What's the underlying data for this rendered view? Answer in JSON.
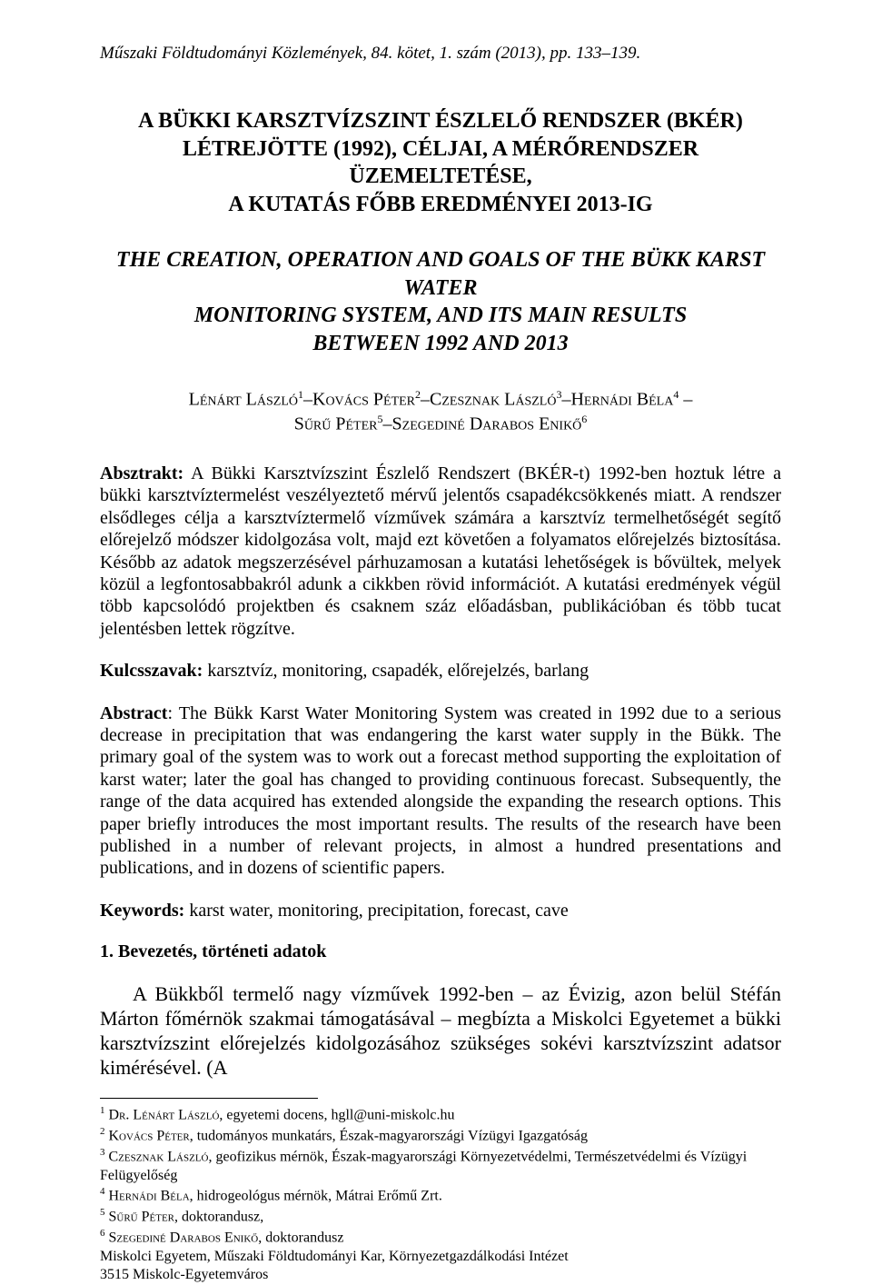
{
  "header": {
    "journal_line": "Műszaki Földtudományi Közlemények, 84. kötet, 1. szám (2013), pp. 133–139."
  },
  "titles": {
    "hu_line1": "A BÜKKI KARSZTVÍZSZINT ÉSZLELŐ RENDSZER (BKÉR)",
    "hu_line2": "LÉTREJÖTTE (1992), CÉLJAI, A MÉRŐRENDSZER ÜZEMELTETÉSE,",
    "hu_line3": "A KUTATÁS FŐBB EREDMÉNYEI 2013-IG",
    "en_line1": "THE CREATION, OPERATION AND GOALS OF THE BÜKK KARST WATER",
    "en_line2": "MONITORING SYSTEM, AND ITS MAIN RESULTS",
    "en_line3": "BETWEEN 1992 AND 2013"
  },
  "authors": {
    "a1_name": "Lénárt László",
    "a1_sup": "1",
    "a2_name": "Kovács Péter",
    "a2_sup": "2",
    "a3_name": "Czesznak László",
    "a3_sup": "3",
    "a4_name": "Hernádi Béla",
    "a4_sup": "4",
    "a5_name": "Sűrű Péter",
    "a5_sup": "5",
    "a6_name": "Szegediné Darabos Enikő",
    "a6_sup": "6",
    "sep": "–"
  },
  "abstract_hu": {
    "label": "Absztrakt:",
    "text": " A Bükki Karsztvízszint Észlelő Rendszert (BKÉR-t) 1992-ben hoztuk létre a bükki karsztvíztermelést veszélyeztető mérvű jelentős csapadékcsökkenés miatt. A rendszer elsődleges célja a karsztvíztermelő vízművek számára a karsztvíz termelhetőségét segítő előrejelző módszer kidolgozása volt, majd ezt követően a folyamatos előrejelzés biztosítása. Később az adatok megszerzésével párhuzamosan a kutatási lehetőségek is bővültek, melyek közül a legfontosabbakról adunk a cikkben rövid információt. A kutatási eredmények végül több kapcsolódó projektben és csaknem száz előadásban, publikációban és több tucat jelentésben lettek rögzítve."
  },
  "keywords_hu": {
    "label": "Kulcsszavak:",
    "text": " karsztvíz, monitoring, csapadék, előrejelzés, barlang"
  },
  "abstract_en": {
    "label": "Abstract",
    "text": ": The Bükk Karst Water Monitoring System was created in 1992 due to a serious decrease in precipitation that was endangering the karst water supply in the Bükk. The primary goal of the system was to work out a forecast method supporting the exploitation of karst water; later the goal has changed to providing continuous forecast. Subsequently, the range of the data acquired has extended alongside the expanding the research options. This paper briefly introduces the most important results. The results of the research have been published in a number of relevant projects, in almost a hundred presentations and publications, and in dozens of scientific papers."
  },
  "keywords_en": {
    "label": "Keywords:",
    "text": " karst water, monitoring, precipitation, forecast, cave"
  },
  "section1": {
    "heading": "1.  Bevezetés, történeti adatok",
    "body": "A Bükkből termelő nagy vízművek 1992-ben – az Évizig, azon belül Stéfán Márton főmérnök szakmai támogatásával – megbízta a Miskolci Egyetemet a bükki karsztvízszint előrejelzés kidolgozásához szükséges sokévi karsztvízszint adatsor kimérésével. (A"
  },
  "footnotes": {
    "f1_sup": "1",
    "f1_name": "Dr. Lénárt László",
    "f1_rest": ", egyetemi docens, hgll@uni-miskolc.hu",
    "f2_sup": "2",
    "f2_name": "Kovács Péter",
    "f2_rest": ", tudományos munkatárs, Észak-magyarországi Vízügyi Igazgatóság",
    "f3_sup": "3",
    "f3_name": "Czesznak László",
    "f3_rest": ", geofizikus mérnök, Észak-magyarországi Környezetvédelmi, Természetvédelmi és Vízügyi Felügyelőség",
    "f4_sup": "4",
    "f4_name": "Hernádi Béla",
    "f4_rest": ", hidrogeológus mérnök, Mátrai Erőmű Zrt.",
    "f5_sup": "5",
    "f5_name": "Sűrű Péter",
    "f5_rest": ", doktorandusz,",
    "f6_sup": "6",
    "f6_name": "Szegediné Darabos Enikő",
    "f6_rest": ", doktorandusz",
    "affil1": "Miskolci Egyetem, Műszaki Földtudományi Kar, Környezetgazdálkodási Intézet",
    "affil2": "3515 Miskolc-Egyetemváros"
  }
}
